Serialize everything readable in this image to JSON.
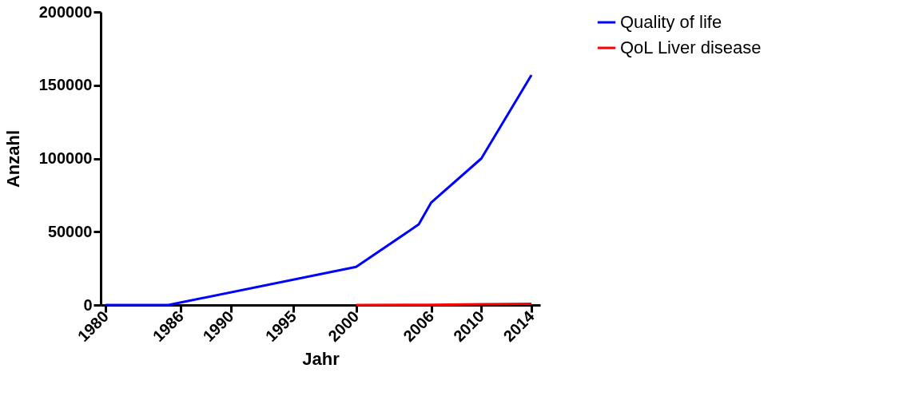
{
  "chart_data": {
    "type": "line",
    "xlabel": "Jahr",
    "ylabel": "Anzahl",
    "x": [
      1980,
      1985,
      2000,
      2005,
      2006,
      2010,
      2014
    ],
    "series": [
      {
        "name": "Quality of life",
        "color": "#0000ff",
        "values": [
          0,
          0,
          26000,
          55000,
          70000,
          100000,
          157000
        ]
      },
      {
        "name": "QoL Liver disease",
        "color": "#ff0000",
        "x": [
          2000,
          2006,
          2010,
          2014
        ],
        "values": [
          0,
          200,
          500,
          800
        ]
      }
    ],
    "xlim": [
      1979.6,
      2014.7
    ],
    "xticks": [
      1980,
      1986,
      1990,
      1995,
      2000,
      2006,
      2010,
      2014
    ],
    "ylim": [
      0,
      200000
    ],
    "yticks": [
      0,
      50000,
      100000,
      150000,
      200000
    ],
    "grid": false,
    "legend": "top right",
    "marker": "none",
    "line_style": "solid"
  }
}
